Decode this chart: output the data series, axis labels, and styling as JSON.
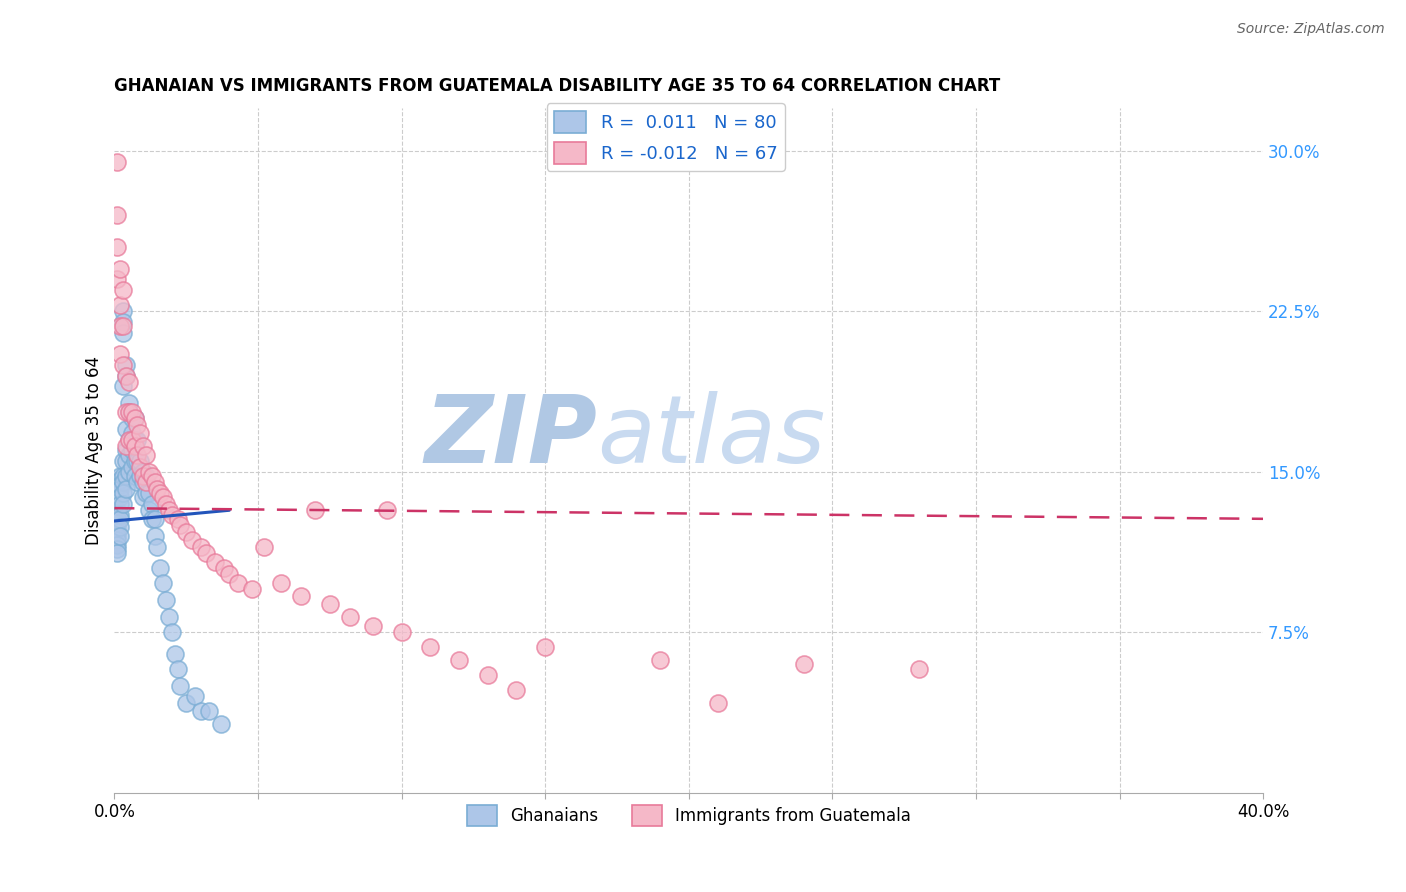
{
  "title": "GHANAIAN VS IMMIGRANTS FROM GUATEMALA DISABILITY AGE 35 TO 64 CORRELATION CHART",
  "source": "Source: ZipAtlas.com",
  "ylabel": "Disability Age 35 to 64",
  "ytick_labels": [
    "7.5%",
    "15.0%",
    "22.5%",
    "30.0%"
  ],
  "ytick_values": [
    0.075,
    0.15,
    0.225,
    0.3
  ],
  "xlim": [
    0.0,
    0.4
  ],
  "ylim": [
    0.0,
    0.32
  ],
  "legend1_r": "0.011",
  "legend1_n": "80",
  "legend2_r": "-0.012",
  "legend2_n": "67",
  "blue_color": "#adc6e8",
  "pink_color": "#f5b8c8",
  "blue_edge": "#7aadd4",
  "pink_edge": "#e87a9a",
  "trend_blue": "#2255bb",
  "trend_pink": "#cc3366",
  "watermark_zip_color": "#b8cfe8",
  "watermark_atlas_color": "#c8d8e8",
  "ghanaians_x": [
    0.001,
    0.001,
    0.001,
    0.001,
    0.001,
    0.001,
    0.001,
    0.001,
    0.001,
    0.001,
    0.001,
    0.002,
    0.002,
    0.002,
    0.002,
    0.002,
    0.002,
    0.002,
    0.002,
    0.002,
    0.002,
    0.003,
    0.003,
    0.003,
    0.003,
    0.003,
    0.003,
    0.003,
    0.003,
    0.003,
    0.004,
    0.004,
    0.004,
    0.004,
    0.004,
    0.004,
    0.004,
    0.005,
    0.005,
    0.005,
    0.005,
    0.005,
    0.006,
    0.006,
    0.006,
    0.006,
    0.007,
    0.007,
    0.007,
    0.007,
    0.008,
    0.008,
    0.008,
    0.009,
    0.009,
    0.01,
    0.01,
    0.01,
    0.011,
    0.011,
    0.012,
    0.012,
    0.013,
    0.013,
    0.014,
    0.014,
    0.015,
    0.016,
    0.017,
    0.018,
    0.019,
    0.02,
    0.021,
    0.022,
    0.023,
    0.025,
    0.028,
    0.03,
    0.033,
    0.037
  ],
  "ghanaians_y": [
    0.132,
    0.13,
    0.128,
    0.126,
    0.124,
    0.122,
    0.12,
    0.118,
    0.116,
    0.114,
    0.112,
    0.148,
    0.146,
    0.144,
    0.142,
    0.138,
    0.135,
    0.13,
    0.128,
    0.124,
    0.12,
    0.225,
    0.22,
    0.215,
    0.19,
    0.155,
    0.148,
    0.145,
    0.14,
    0.135,
    0.2,
    0.195,
    0.17,
    0.16,
    0.155,
    0.148,
    0.142,
    0.182,
    0.178,
    0.165,
    0.158,
    0.15,
    0.175,
    0.168,
    0.16,
    0.152,
    0.175,
    0.165,
    0.155,
    0.148,
    0.165,
    0.155,
    0.145,
    0.155,
    0.148,
    0.15,
    0.145,
    0.138,
    0.148,
    0.14,
    0.14,
    0.132,
    0.135,
    0.128,
    0.128,
    0.12,
    0.115,
    0.105,
    0.098,
    0.09,
    0.082,
    0.075,
    0.065,
    0.058,
    0.05,
    0.042,
    0.045,
    0.038,
    0.038,
    0.032
  ],
  "guatemala_x": [
    0.001,
    0.001,
    0.001,
    0.001,
    0.002,
    0.002,
    0.002,
    0.002,
    0.003,
    0.003,
    0.003,
    0.004,
    0.004,
    0.004,
    0.005,
    0.005,
    0.005,
    0.006,
    0.006,
    0.007,
    0.007,
    0.008,
    0.008,
    0.009,
    0.009,
    0.01,
    0.01,
    0.011,
    0.011,
    0.012,
    0.013,
    0.014,
    0.015,
    0.016,
    0.017,
    0.018,
    0.019,
    0.02,
    0.022,
    0.023,
    0.025,
    0.027,
    0.03,
    0.032,
    0.035,
    0.038,
    0.04,
    0.043,
    0.048,
    0.052,
    0.058,
    0.065,
    0.07,
    0.075,
    0.082,
    0.09,
    0.095,
    0.1,
    0.11,
    0.12,
    0.13,
    0.14,
    0.15,
    0.19,
    0.21,
    0.24,
    0.28
  ],
  "guatemala_y": [
    0.295,
    0.27,
    0.255,
    0.24,
    0.245,
    0.228,
    0.218,
    0.205,
    0.235,
    0.218,
    0.2,
    0.195,
    0.178,
    0.162,
    0.192,
    0.178,
    0.165,
    0.178,
    0.165,
    0.175,
    0.162,
    0.172,
    0.158,
    0.168,
    0.152,
    0.162,
    0.148,
    0.158,
    0.145,
    0.15,
    0.148,
    0.145,
    0.142,
    0.14,
    0.138,
    0.135,
    0.132,
    0.13,
    0.128,
    0.125,
    0.122,
    0.118,
    0.115,
    0.112,
    0.108,
    0.105,
    0.102,
    0.098,
    0.095,
    0.115,
    0.098,
    0.092,
    0.132,
    0.088,
    0.082,
    0.078,
    0.132,
    0.075,
    0.068,
    0.062,
    0.055,
    0.048,
    0.068,
    0.062,
    0.042,
    0.06,
    0.058
  ],
  "blue_trend_x": [
    0.0,
    0.04
  ],
  "blue_trend_y": [
    0.127,
    0.132
  ],
  "pink_trend_x": [
    0.0,
    0.4
  ],
  "pink_trend_y": [
    0.133,
    0.128
  ]
}
